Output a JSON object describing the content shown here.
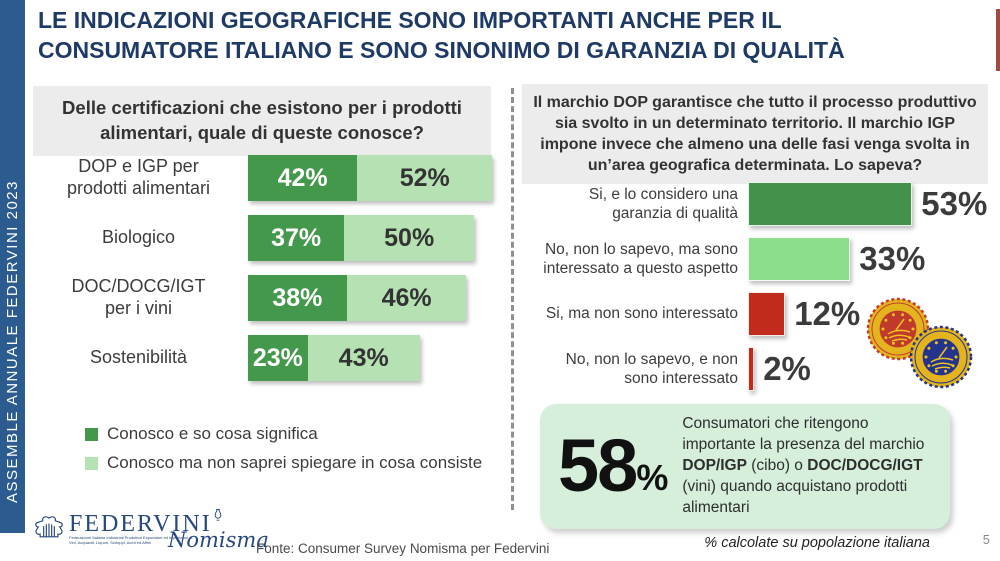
{
  "slide": {
    "title_line1": "LE INDICAZIONI GEOGRAFICHE SONO IMPORTANTI ANCHE PER IL",
    "title_line2": "CONSUMATORE ITALIANO E SONO SINONIMO DI GARANZIA DI QUALITÀ",
    "sidebar_label": "ASSEMBLE ANNUALE FEDERVINI 2023",
    "source_note": "Fonte: Consumer Survey Nomisma per Federvini",
    "footnote": "% calcolate su popolazione italiana",
    "page_number": "5"
  },
  "colors": {
    "title_navy": "#1E3A66",
    "sidebar_blue": "#2B5B8F",
    "question_box_bg": "#ECECEC",
    "dark_green": "#44984C",
    "light_green_left": "#B6E2B3",
    "light_green_right": "#8CDE8C",
    "red": "#C02B1B",
    "highlight_bg": "#D6EFDB"
  },
  "chart_data": [
    {
      "type": "bar",
      "orientation": "horizontal",
      "stacked": true,
      "title": "Delle certificazioni che esistono per i prodotti alimentari, quale di queste conosce?",
      "categories": [
        "DOP e IGP per\nprodotti alimentari",
        "Biologico",
        "DOC/DOCG/IGT\nper i vini",
        "Sostenibilità"
      ],
      "series": [
        {
          "name": "Conosco e so cosa significa",
          "color": "#44984C",
          "values": [
            42,
            37,
            38,
            23
          ],
          "labels": [
            "42%",
            "37%",
            "38%",
            "23%"
          ]
        },
        {
          "name": "Conosco ma non saprei spiegare in cosa consiste",
          "color": "#B6E2B3",
          "values": [
            52,
            50,
            46,
            43
          ],
          "labels": [
            "52%",
            "50%",
            "46%",
            "43%"
          ]
        }
      ],
      "value_unit": "%",
      "legend_position": "bottom-left"
    },
    {
      "type": "bar",
      "orientation": "horizontal",
      "stacked": false,
      "title": "Il marchio DOP garantisce che tutto il processo produttivo sia svolto in un determinato territorio. Il marchio IGP impone invece che almeno una delle fasi venga svolta in un’area geografica determinata. Lo sapeva?",
      "categories": [
        "Si, e lo considero una\ngaranzia di qualità",
        "No, non lo sapevo, ma sono\ninteressato a questo aspetto",
        "Si, ma non sono interessato",
        "No, non lo sapevo, e non\nsono interessato"
      ],
      "values": [
        53,
        33,
        12,
        2
      ],
      "labels": [
        "53%",
        "33%",
        "12%",
        "2%"
      ],
      "colors": [
        "#43914A",
        "#8CDE8C",
        "#C02B1B",
        "#C02B1B"
      ],
      "value_unit": "%"
    }
  ],
  "highlight_box": {
    "value": "58",
    "unit": "%",
    "segments": [
      {
        "text": "Consumatori che ritengono importante la presenza del marchio ",
        "bold": false
      },
      {
        "text": "DOP/IGP",
        "bold": true
      },
      {
        "text": " (cibo) o ",
        "bold": false
      },
      {
        "text": "DOC/DOCG/IGT",
        "bold": true
      },
      {
        "text": " (vini) quando acquistano prodotti alimentari",
        "bold": false
      }
    ]
  },
  "icons": {
    "dop_seal": "dop-certification-seal",
    "igp_seal": "igp-certification-seal",
    "federvini_eagle": "federvini-eagle-emblem",
    "nomisma_vase": "nomisma-vase-emblem"
  },
  "logos": {
    "federvini": "FEDERVINI",
    "federvini_subtitle": "Federazione Italiana Industriali Produttori Esportatori ed Importatori di Vini, Acquaviti, Liquori, Sciroppi, Aceti ed Affini",
    "nomisma": "Nomisma"
  }
}
